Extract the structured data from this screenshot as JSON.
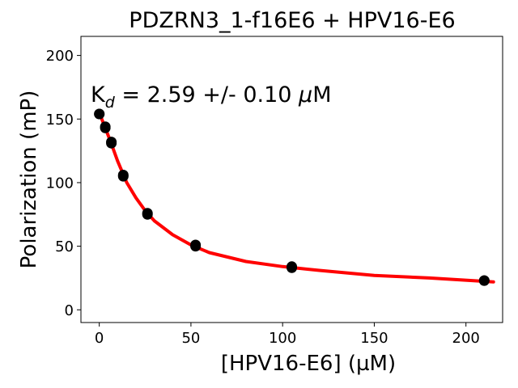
{
  "chart_data": {
    "type": "scatter",
    "title": "PDZRN3_1-f16E6 + HPV16-E6",
    "xlabel": "[HPV16-E6] (µM)",
    "ylabel": "Polarization (mP)",
    "xlim": [
      -10,
      220
    ],
    "ylim": [
      -10,
      215
    ],
    "x_ticks": [
      0,
      50,
      100,
      150,
      200
    ],
    "y_ticks": [
      0,
      50,
      100,
      150,
      200
    ],
    "grid": false,
    "annotation": {
      "prefix": "K",
      "subscript": "d",
      "value": " = 2.59 +/- 0.10 ",
      "unit_greek": "μ",
      "unit": "M"
    },
    "series": [
      {
        "kind": "points",
        "color": "#000000",
        "x": [
          0,
          0,
          3.3,
          3.3,
          6.6,
          6.6,
          13.1,
          13.1,
          26.3,
          26.3,
          52.5,
          52.5,
          105,
          105,
          210,
          210
        ],
        "y": [
          154,
          154,
          144,
          143,
          132,
          131,
          106,
          105,
          76,
          75,
          51,
          50,
          34,
          33,
          23,
          23
        ]
      },
      {
        "kind": "fit-line",
        "color": "#ff0000",
        "x": [
          0,
          3,
          6,
          10,
          15,
          20,
          25,
          30,
          40,
          50,
          60,
          80,
          100,
          120,
          150,
          180,
          215
        ],
        "y": [
          155,
          144,
          133,
          117,
          100,
          88,
          78,
          70,
          59,
          51,
          45,
          38,
          34,
          31,
          27,
          25,
          22
        ]
      }
    ]
  }
}
